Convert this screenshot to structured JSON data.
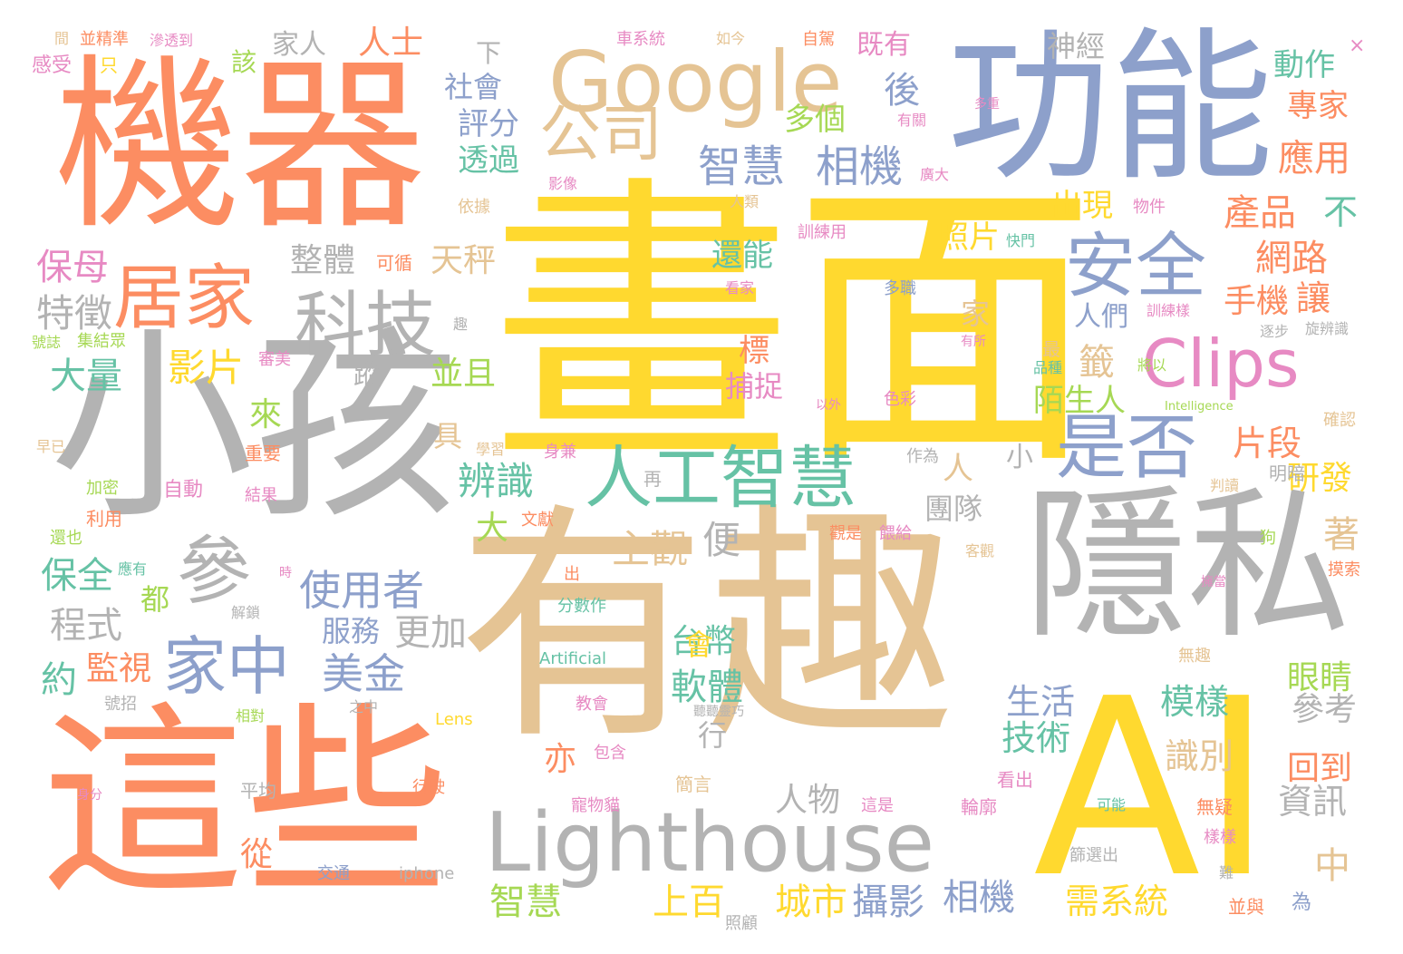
{
  "palette": {
    "orange": "#fc8d62",
    "blue": "#8da0cb",
    "yellow": "#ffd92f",
    "tan": "#e5c494",
    "gray": "#b3b3b3",
    "green": "#66c2a5",
    "pink": "#e78ac3",
    "lime": "#a6d854"
  },
  "words": [
    {
      "t": "畫面",
      "c": "yellow"
    },
    {
      "t": "有趣",
      "c": "tan"
    },
    {
      "t": "小孩",
      "c": "gray"
    },
    {
      "t": "機器",
      "c": "orange"
    },
    {
      "t": "這些",
      "c": "orange"
    },
    {
      "t": "功能",
      "c": "blue"
    },
    {
      "t": "AI",
      "c": "yellow"
    },
    {
      "t": "隱私",
      "c": "gray"
    },
    {
      "t": "Lighthouse",
      "c": "gray"
    },
    {
      "t": "Google",
      "c": "tan"
    },
    {
      "t": "人工智慧",
      "c": "green"
    },
    {
      "t": "公司",
      "c": "tan"
    },
    {
      "t": "居家",
      "c": "orange"
    },
    {
      "t": "科技",
      "c": "gray"
    },
    {
      "t": "參",
      "c": "gray"
    },
    {
      "t": "家中",
      "c": "blue"
    },
    {
      "t": "安全",
      "c": "blue"
    },
    {
      "t": "是否",
      "c": "blue"
    },
    {
      "t": "Clips",
      "c": "pink"
    },
    {
      "t": "智慧",
      "c": "blue"
    },
    {
      "t": "相機",
      "c": "blue"
    },
    {
      "t": "使用者",
      "c": "blue"
    },
    {
      "t": "美金",
      "c": "blue"
    },
    {
      "t": "更加",
      "c": "gray"
    },
    {
      "t": "服務",
      "c": "blue"
    },
    {
      "t": "程式",
      "c": "gray"
    },
    {
      "t": "保全",
      "c": "green"
    },
    {
      "t": "監視",
      "c": "orange"
    },
    {
      "t": "約",
      "c": "green"
    },
    {
      "t": "都",
      "c": "lime"
    },
    {
      "t": "特徵",
      "c": "gray"
    },
    {
      "t": "保母",
      "c": "pink"
    },
    {
      "t": "大量",
      "c": "green"
    },
    {
      "t": "影片",
      "c": "yellow"
    },
    {
      "t": "來",
      "c": "lime"
    },
    {
      "t": "整體",
      "c": "gray"
    },
    {
      "t": "天秤",
      "c": "tan"
    },
    {
      "t": "並且",
      "c": "lime"
    },
    {
      "t": "具",
      "c": "tan"
    },
    {
      "t": "辨識",
      "c": "green"
    },
    {
      "t": "大",
      "c": "lime"
    },
    {
      "t": "主觀",
      "c": "tan"
    },
    {
      "t": "便",
      "c": "gray"
    },
    {
      "t": "台幣",
      "c": "green"
    },
    {
      "t": "人物",
      "c": "gray"
    },
    {
      "t": "軟體",
      "c": "green"
    },
    {
      "t": "會",
      "c": "yellow"
    },
    {
      "t": "行",
      "c": "gray"
    },
    {
      "t": "亦",
      "c": "orange"
    },
    {
      "t": "從",
      "c": "orange"
    },
    {
      "t": "上百",
      "c": "yellow"
    },
    {
      "t": "智慧",
      "c": "lime"
    },
    {
      "t": "城市",
      "c": "yellow"
    },
    {
      "t": "攝影",
      "c": "blue"
    },
    {
      "t": "相機",
      "c": "blue"
    },
    {
      "t": "需系統",
      "c": "yellow"
    },
    {
      "t": "技術",
      "c": "green"
    },
    {
      "t": "生活",
      "c": "blue"
    },
    {
      "t": "模樣",
      "c": "green"
    },
    {
      "t": "識別",
      "c": "tan"
    },
    {
      "t": "資訊",
      "c": "gray"
    },
    {
      "t": "參考",
      "c": "gray"
    },
    {
      "t": "回到",
      "c": "orange"
    },
    {
      "t": "中",
      "c": "tan"
    },
    {
      "t": "眼睛",
      "c": "lime"
    },
    {
      "t": "著",
      "c": "tan"
    },
    {
      "t": "研發",
      "c": "yellow"
    },
    {
      "t": "片段",
      "c": "orange"
    },
    {
      "t": "陌生人",
      "c": "lime"
    },
    {
      "t": "籤",
      "c": "tan"
    },
    {
      "t": "手機",
      "c": "orange"
    },
    {
      "t": "讓",
      "c": "orange"
    },
    {
      "t": "網路",
      "c": "orange"
    },
    {
      "t": "產品",
      "c": "orange"
    },
    {
      "t": "不",
      "c": "green"
    },
    {
      "t": "應用",
      "c": "orange"
    },
    {
      "t": "專家",
      "c": "orange"
    },
    {
      "t": "動作",
      "c": "green"
    },
    {
      "t": "出現",
      "c": "yellow"
    },
    {
      "t": "照片",
      "c": "yellow"
    },
    {
      "t": "還能",
      "c": "green"
    },
    {
      "t": "人們",
      "c": "blue"
    },
    {
      "t": "捕捉",
      "c": "pink"
    },
    {
      "t": "標",
      "c": "orange"
    },
    {
      "t": "蹤",
      "c": "gray"
    },
    {
      "t": "透過",
      "c": "green"
    },
    {
      "t": "評分",
      "c": "blue"
    },
    {
      "t": "社會",
      "c": "blue"
    },
    {
      "t": "下",
      "c": "gray"
    },
    {
      "t": "多個",
      "c": "lime"
    },
    {
      "t": "後",
      "c": "blue"
    },
    {
      "t": "既有",
      "c": "pink"
    },
    {
      "t": "神經",
      "c": "gray"
    },
    {
      "t": "家人",
      "c": "gray"
    },
    {
      "t": "人士",
      "c": "orange"
    },
    {
      "t": "該",
      "c": "lime"
    },
    {
      "t": "團隊",
      "c": "gray"
    },
    {
      "t": "小",
      "c": "gray"
    },
    {
      "t": "人",
      "c": "tan"
    },
    {
      "t": "家",
      "c": "tan"
    },
    {
      "t": "感受",
      "c": "pink"
    },
    {
      "t": "只",
      "c": "yellow"
    },
    {
      "t": "並精準",
      "c": "orange"
    },
    {
      "t": "滲透到",
      "c": "pink"
    },
    {
      "t": "間",
      "c": "tan"
    },
    {
      "t": "車系統",
      "c": "pink"
    },
    {
      "t": "如今",
      "c": "tan"
    },
    {
      "t": "自駕",
      "c": "orange"
    },
    {
      "t": "×",
      "c": "pink"
    },
    {
      "t": "有關",
      "c": "pink"
    },
    {
      "t": "多重",
      "c": "pink"
    },
    {
      "t": "廣大",
      "c": "pink"
    },
    {
      "t": "影像",
      "c": "pink"
    },
    {
      "t": "人類",
      "c": "tan"
    },
    {
      "t": "依據",
      "c": "tan"
    },
    {
      "t": "物件",
      "c": "pink"
    },
    {
      "t": "訓練用",
      "c": "pink"
    },
    {
      "t": "快門",
      "c": "green"
    },
    {
      "t": "可循",
      "c": "orange"
    },
    {
      "t": "看家",
      "c": "pink"
    },
    {
      "t": "多職",
      "c": "blue"
    },
    {
      "t": "訓練樣",
      "c": "pink"
    },
    {
      "t": "逐步",
      "c": "gray"
    },
    {
      "t": "旋辨識",
      "c": "gray"
    },
    {
      "t": "有所",
      "c": "pink"
    },
    {
      "t": "最",
      "c": "tan"
    },
    {
      "t": "品種",
      "c": "green"
    },
    {
      "t": "將以",
      "c": "lime"
    },
    {
      "t": "Intelligence",
      "c": "lime"
    },
    {
      "t": "確認",
      "c": "tan"
    },
    {
      "t": "色彩",
      "c": "pink"
    },
    {
      "t": "以外",
      "c": "pink"
    },
    {
      "t": "趣",
      "c": "gray"
    },
    {
      "t": "號誌",
      "c": "lime"
    },
    {
      "t": "集結眾",
      "c": "lime"
    },
    {
      "t": "審美",
      "c": "pink"
    },
    {
      "t": "重要",
      "c": "orange"
    },
    {
      "t": "早已",
      "c": "tan"
    },
    {
      "t": "學習",
      "c": "tan"
    },
    {
      "t": "身兼",
      "c": "pink"
    },
    {
      "t": "自動",
      "c": "pink"
    },
    {
      "t": "加密",
      "c": "lime"
    },
    {
      "t": "結果",
      "c": "pink"
    },
    {
      "t": "利用",
      "c": "orange"
    },
    {
      "t": "還也",
      "c": "lime"
    },
    {
      "t": "應有",
      "c": "green"
    },
    {
      "t": "文獻",
      "c": "orange"
    },
    {
      "t": "作為",
      "c": "gray"
    },
    {
      "t": "再",
      "c": "gray"
    },
    {
      "t": "判讀",
      "c": "tan"
    },
    {
      "t": "明暗",
      "c": "gray"
    },
    {
      "t": "觀是",
      "c": "orange"
    },
    {
      "t": "餵給",
      "c": "pink"
    },
    {
      "t": "客觀",
      "c": "tan"
    },
    {
      "t": "狗",
      "c": "lime"
    },
    {
      "t": "擁當",
      "c": "pink"
    },
    {
      "t": "摸索",
      "c": "orange"
    },
    {
      "t": "分數作",
      "c": "green"
    },
    {
      "t": "Artificial",
      "c": "green"
    },
    {
      "t": "解鎖",
      "c": "gray"
    },
    {
      "t": "無趣",
      "c": "tan"
    },
    {
      "t": "號招",
      "c": "gray"
    },
    {
      "t": "之中",
      "c": "gray"
    },
    {
      "t": "教會",
      "c": "pink"
    },
    {
      "t": "聽聽靈巧",
      "c": "gray"
    },
    {
      "t": "相對",
      "c": "lime"
    },
    {
      "t": "Lens",
      "c": "yellow"
    },
    {
      "t": "包含",
      "c": "pink"
    },
    {
      "t": "看出",
      "c": "pink"
    },
    {
      "t": "身分",
      "c": "pink"
    },
    {
      "t": "平均",
      "c": "gray"
    },
    {
      "t": "行駛",
      "c": "orange"
    },
    {
      "t": "這是",
      "c": "pink"
    },
    {
      "t": "輪廓",
      "c": "pink"
    },
    {
      "t": "可能",
      "c": "green"
    },
    {
      "t": "無疑",
      "c": "orange"
    },
    {
      "t": "樣樣",
      "c": "pink"
    },
    {
      "t": "篩選出",
      "c": "gray"
    },
    {
      "t": "交通",
      "c": "blue"
    },
    {
      "t": "iphone",
      "c": "gray"
    },
    {
      "t": "寵物貓",
      "c": "pink"
    },
    {
      "t": "照顧",
      "c": "gray"
    },
    {
      "t": "並與",
      "c": "orange"
    },
    {
      "t": "為",
      "c": "blue"
    },
    {
      "t": "難",
      "c": "gray"
    },
    {
      "t": "出",
      "c": "orange"
    },
    {
      "t": "時",
      "c": "pink"
    },
    {
      "t": "簡言",
      "c": "tan"
    }
  ]
}
